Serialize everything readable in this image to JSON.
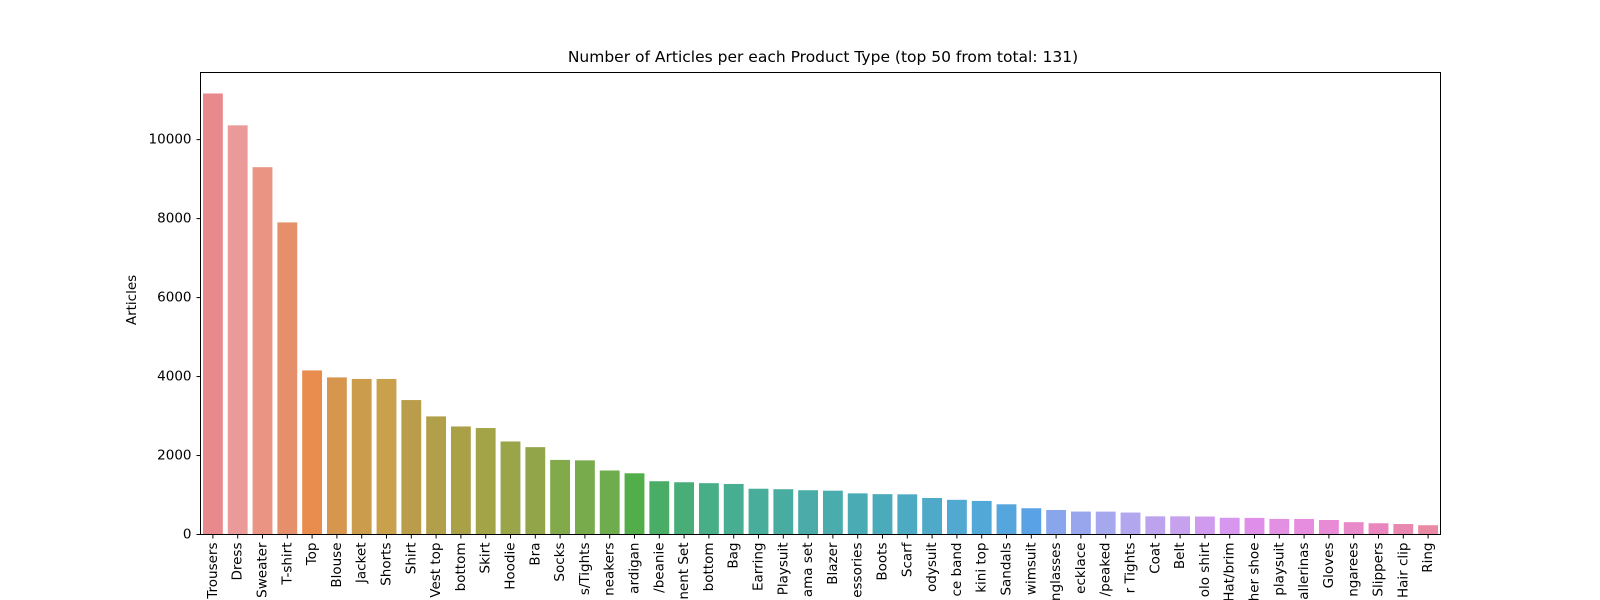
{
  "chart_data": {
    "type": "bar",
    "title": "Number of Articles per each Product Type (top 50 from total: 131)",
    "xlabel": "",
    "ylabel": "Articles",
    "ylim": [
      0,
      11700
    ],
    "yticks": [
      0,
      2000,
      4000,
      6000,
      8000,
      10000
    ],
    "grid": false,
    "legend": "none",
    "categories": [
      "Trousers",
      "Dress",
      "Sweater",
      "T-shirt",
      "Top",
      "Blouse",
      "Jacket",
      "Shorts",
      "Shirt",
      "Vest top",
      "bottom",
      "Skirt",
      "Hoodie",
      "Bra",
      "Socks",
      "s/Tights",
      "neakers",
      "ardigan",
      "/beanie",
      "nent Set",
      "bottom",
      "Bag",
      "Earring",
      "Playsuit",
      "ama set",
      "Blazer",
      "essories",
      "Boots",
      "Scarf",
      "odysuit",
      "ce band",
      "kini top",
      "Sandals",
      "wimsuit",
      "nglasses",
      "ecklace",
      "/peaked",
      "r Tights",
      "Coat",
      "Belt",
      "olo shirt",
      "Hat/brim",
      "her shoe",
      "playsuit",
      "allerinas",
      "Gloves",
      "ngarees",
      "Slippers",
      "Hair clip",
      "Ring"
    ],
    "values": [
      11169,
      10362,
      9302,
      7904,
      4155,
      3979,
      3940,
      3939,
      3405,
      2991,
      2736,
      2696,
      2356,
      2212,
      1889,
      1878,
      1621,
      1550,
      1349,
      1323,
      1300,
      1280,
      1159,
      1147,
      1121,
      1110,
      1042,
      1022,
      1017,
      925,
      878,
      850,
      765,
      665,
      621,
      581,
      580,
      556,
      460,
      460,
      455,
      424,
      420,
      394,
      394,
      367,
      312,
      285,
      265,
      235
    ],
    "colors": [
      "#e8898e",
      "#e99a99",
      "#ea9583",
      "#e5906a",
      "#e88d4e",
      "#d6964e",
      "#cc9c4d",
      "#c9a14d",
      "#b99d4b",
      "#b29f49",
      "#aaa048",
      "#a3a347",
      "#9aa448",
      "#93a549",
      "#82aa4a",
      "#78ab4c",
      "#6eac4d",
      "#52ae48",
      "#49ad66",
      "#49ad78",
      "#48ae88",
      "#48ae92",
      "#49ad9b",
      "#49aca1",
      "#4aaba8",
      "#4bacad",
      "#4aabb4",
      "#4babbb",
      "#4daac3",
      "#4fa9c9",
      "#51a8d1",
      "#52a8d6",
      "#56a6de",
      "#5aa2e6",
      "#89a6ec",
      "#98a6ee",
      "#a6a8ee",
      "#b2a7ee",
      "#bda3ee",
      "#c6a1ee",
      "#d09bee",
      "#d897ee",
      "#df8fe9",
      "#e38fe3",
      "#e78de0",
      "#e98ad6",
      "#e889c9",
      "#e886bd",
      "#e887b0",
      "#e88aa3"
    ]
  }
}
